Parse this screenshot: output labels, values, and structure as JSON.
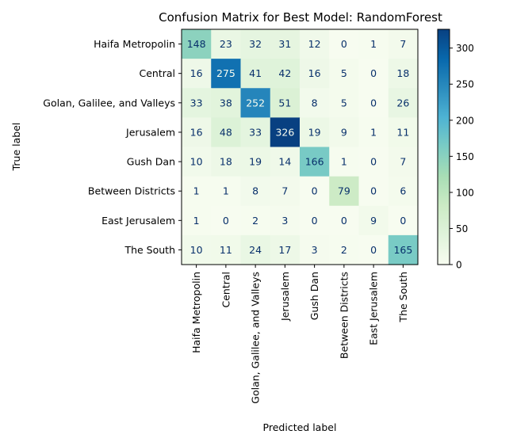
{
  "chart_data": {
    "type": "heatmap",
    "title": "Confusion Matrix for Best Model: RandomForest",
    "xlabel": "Predicted label",
    "ylabel": "True label",
    "labels": [
      "Haifa Metropolin",
      "Central",
      "Golan, Galilee, and Valleys",
      "Jerusalem",
      "Gush Dan",
      "Between Districts",
      "East Jerusalem",
      "The South"
    ],
    "matrix": [
      [
        148,
        23,
        32,
        31,
        12,
        0,
        1,
        7
      ],
      [
        16,
        275,
        41,
        42,
        16,
        5,
        0,
        18
      ],
      [
        33,
        38,
        252,
        51,
        8,
        5,
        0,
        26
      ],
      [
        16,
        48,
        33,
        326,
        19,
        9,
        1,
        11
      ],
      [
        10,
        18,
        19,
        14,
        166,
        1,
        0,
        7
      ],
      [
        1,
        1,
        8,
        7,
        0,
        79,
        0,
        6
      ],
      [
        1,
        0,
        2,
        3,
        0,
        0,
        9,
        0
      ],
      [
        10,
        11,
        24,
        17,
        3,
        2,
        0,
        165
      ]
    ],
    "colormap": "GnBu",
    "vmin": 0,
    "vmax": 326,
    "colorbar_ticks": [
      "0",
      "50",
      "100",
      "150",
      "200",
      "250",
      "300"
    ],
    "grid": false,
    "colorbar": "right"
  }
}
